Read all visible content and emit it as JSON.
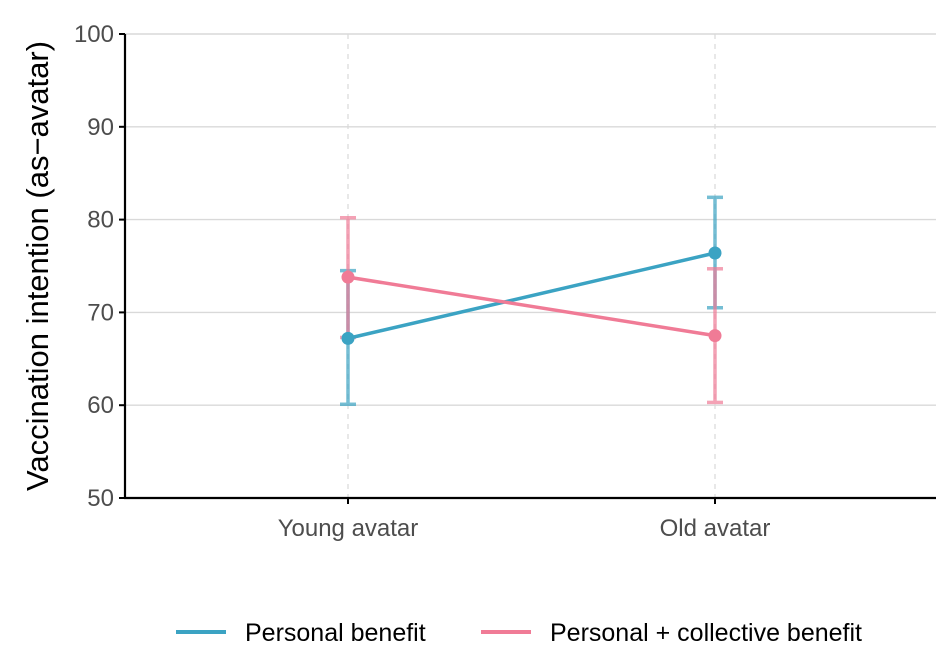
{
  "chart_data": {
    "type": "line",
    "title": "",
    "xlabel": "",
    "ylabel": "Vaccination intention (as−avatar)",
    "categories": [
      "Young avatar",
      "Old avatar"
    ],
    "ylim": [
      50,
      100
    ],
    "yticks": [
      "50",
      "60",
      "70",
      "80",
      "90",
      "100"
    ],
    "grid": {
      "horizontal": true,
      "vertical_dashed": true
    },
    "legend_position": "bottom",
    "series": [
      {
        "name": "Personal benefit",
        "color": "#3ba3c3",
        "values": [
          67.2,
          76.4
        ],
        "error_low": [
          60.1,
          70.5
        ],
        "error_high": [
          74.5,
          82.4
        ]
      },
      {
        "name": "Personal + collective benefit",
        "color": "#f07b96",
        "values": [
          73.8,
          67.5
        ],
        "error_low": [
          67.3,
          60.3
        ],
        "error_high": [
          80.2,
          74.7
        ]
      }
    ]
  }
}
